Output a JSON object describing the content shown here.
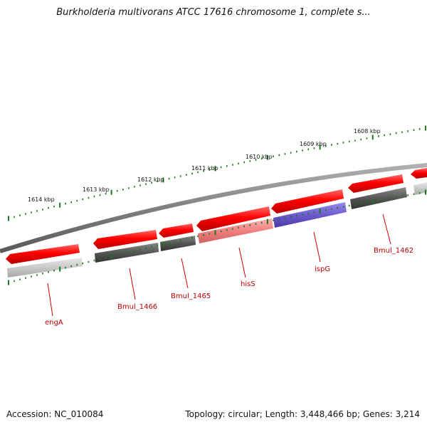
{
  "title": "Burkholderia multivorans ATCC 17616 chromosome 1, complete s...",
  "accession": "Accession: NC_010084",
  "summary": "Topology: circular; Length: 3,448,466 bp; Genes: 3,214",
  "ticks": [
    {
      "label": "1614 kbp"
    },
    {
      "label": "1613 kbp"
    },
    {
      "label": "1612 kbp"
    },
    {
      "label": "1611 kbp"
    },
    {
      "label": "1610 kbp"
    },
    {
      "label": "1609 kbp"
    },
    {
      "label": "1608 kbp"
    }
  ],
  "genes": [
    {
      "label": "engA",
      "color": "#cccccc"
    },
    {
      "label": "Bmul_1466",
      "color": "#5a5a5a"
    },
    {
      "label": "Bmul_1465",
      "color": "#5a5a5a"
    },
    {
      "label": "hisS",
      "color": "#f08080"
    },
    {
      "label": "ispG",
      "color": "#6a5acd"
    },
    {
      "label": "Bmul_1462",
      "color": "#5a5a5a"
    }
  ],
  "colors": {
    "forward_strand": "#ff0000",
    "backbone": "#808080",
    "tick": "#1a7a1a",
    "label_line": "#cc0000"
  }
}
